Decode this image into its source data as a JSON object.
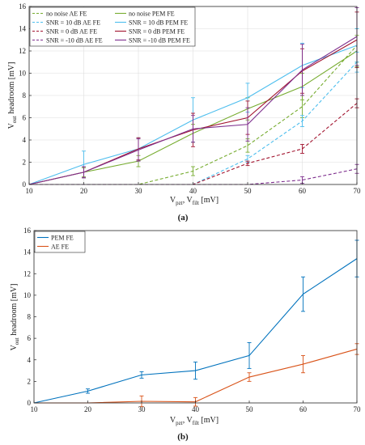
{
  "chart_data": [
    {
      "type": "line",
      "panel_label": "(a)",
      "ylabel_main": "V",
      "ylabel_sub": "out",
      "ylabel_rest": " headroom [mV]",
      "xlabel_main1": "V",
      "xlabel_sub1": "pzt",
      "xlabel_mid": ", V",
      "xlabel_sub2": "filt",
      "xlabel_rest": " [mV]",
      "xlim": [
        10,
        70
      ],
      "ylim": [
        0,
        16
      ],
      "xticks": [
        10,
        20,
        30,
        40,
        50,
        60,
        70
      ],
      "yticks": [
        0,
        2,
        4,
        6,
        8,
        10,
        12,
        14,
        16
      ],
      "grid": true,
      "legend_position": "top-left",
      "x": [
        10,
        20,
        30,
        40,
        50,
        60,
        70
      ],
      "series": [
        {
          "name": "no noise AE FE",
          "color": "#77ac30",
          "dashed": true,
          "values": [
            0,
            0,
            0,
            1.2,
            3.5,
            7.0,
            12.5
          ],
          "errors": [
            0,
            0,
            0,
            0.4,
            0.6,
            1.0,
            1.5
          ]
        },
        {
          "name": "no noise PEM FE",
          "color": "#77ac30",
          "dashed": false,
          "values": [
            0,
            1.1,
            2.1,
            4.6,
            6.8,
            8.8,
            12.0
          ],
          "errors": [
            0,
            0.4,
            0.5,
            0.8,
            1.0,
            1.2,
            1.4
          ]
        },
        {
          "name": "SNR = 10 dB AE FE",
          "color": "#4dbeee",
          "dashed": true,
          "values": [
            0,
            0,
            0,
            0,
            2.3,
            5.7,
            11.0
          ],
          "errors": [
            0,
            0,
            0,
            0,
            0.3,
            0.5,
            0.9
          ]
        },
        {
          "name": "SNR = 10 dB PEM FE",
          "color": "#4dbeee",
          "dashed": false,
          "values": [
            0,
            1.8,
            3.2,
            5.8,
            7.8,
            10.7,
            12.5
          ],
          "errors": [
            0,
            1.2,
            1.0,
            2.0,
            1.3,
            2.0,
            1.5
          ]
        },
        {
          "name": "SNR = 0 dB AE FE",
          "color": "#a2142f",
          "dashed": true,
          "values": [
            0,
            0,
            0,
            0,
            1.9,
            3.2,
            7.3
          ],
          "errors": [
            0,
            0,
            0,
            0,
            0.2,
            0.4,
            0.4
          ]
        },
        {
          "name": "SNR = 0 dB PEM FE",
          "color": "#a2142f",
          "dashed": false,
          "values": [
            0,
            1.1,
            3.2,
            4.9,
            6.0,
            10.2,
            13.0
          ],
          "errors": [
            0,
            0.5,
            1.0,
            1.5,
            1.5,
            2.0,
            2.5
          ]
        },
        {
          "name": "SNR = -10 dB AE FE",
          "color": "#7e2f8e",
          "dashed": true,
          "values": [
            0,
            0,
            0,
            0,
            0,
            0.4,
            1.4
          ],
          "errors": [
            0,
            0,
            0,
            0,
            0,
            0.3,
            0.4
          ]
        },
        {
          "name": "SNR = -10 dB PEM FE",
          "color": "#7e2f8e",
          "dashed": false,
          "values": [
            0,
            1.1,
            3.1,
            5.0,
            5.4,
            10.3,
            13.3
          ],
          "errors": [
            0,
            0.5,
            1.0,
            1.2,
            1.5,
            2.3,
            2.6
          ]
        }
      ]
    },
    {
      "type": "line",
      "panel_label": "(b)",
      "ylabel_main": "V",
      "ylabel_sub": "out",
      "ylabel_rest": " headroom [mV]",
      "xlabel_main1": "V",
      "xlabel_sub1": "pzt",
      "xlabel_mid": ", V",
      "xlabel_sub2": "filt",
      "xlabel_rest": " [mV]",
      "xlim": [
        10,
        70
      ],
      "ylim": [
        0,
        16
      ],
      "xticks": [
        10,
        20,
        30,
        40,
        50,
        60,
        70
      ],
      "yticks": [
        0,
        2,
        4,
        6,
        8,
        10,
        12,
        14,
        16
      ],
      "grid": false,
      "legend_position": "top-left",
      "x": [
        10,
        20,
        30,
        40,
        50,
        60,
        70
      ],
      "series": [
        {
          "name": "PEM FE",
          "color": "#0072bd",
          "dashed": false,
          "values": [
            0,
            1.1,
            2.6,
            3.0,
            4.4,
            10.1,
            13.4
          ],
          "errors": [
            0,
            0.2,
            0.3,
            0.8,
            1.2,
            1.6,
            1.7
          ]
        },
        {
          "name": "AE FE",
          "color": "#d95319",
          "dashed": false,
          "values": [
            0,
            0,
            0.15,
            0.1,
            2.4,
            3.6,
            5.0
          ],
          "errors": [
            0,
            0,
            0.5,
            0.4,
            0.4,
            0.8,
            0.5
          ]
        }
      ]
    }
  ]
}
